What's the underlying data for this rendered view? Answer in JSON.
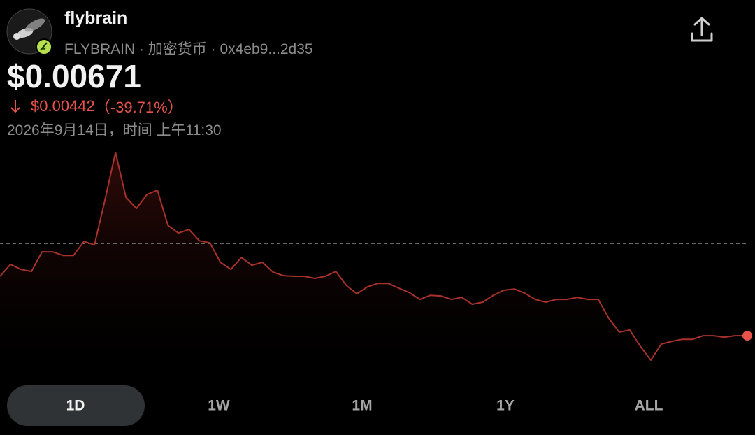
{
  "header": {
    "name": "flybrain",
    "subtitle": "FLYBRAIN · 加密货币 · 0x4eb9...2d35",
    "price": "$0.00671",
    "change": "$0.00442",
    "change_percent": "（-39.71%）",
    "timestamp": "2026年9月14日，时间 上午11:30"
  },
  "chart_data": {
    "type": "line",
    "color": "#a8322b",
    "end_marker_color": "#e5534b",
    "reference_value": 0.01113,
    "ylim": [
      0.00554,
      0.01549
    ],
    "values": [
      0.00956,
      0.01013,
      0.00989,
      0.00979,
      0.01073,
      0.01073,
      0.01056,
      0.01056,
      0.01123,
      0.01106,
      0.01321,
      0.01549,
      0.01334,
      0.01281,
      0.01348,
      0.01368,
      0.012,
      0.01163,
      0.0118,
      0.01126,
      0.01116,
      0.01023,
      0.00989,
      0.01046,
      0.01009,
      0.01023,
      0.00976,
      0.00959,
      0.00956,
      0.00956,
      0.00946,
      0.00956,
      0.00979,
      0.00912,
      0.00872,
      0.00905,
      0.00922,
      0.00922,
      0.00899,
      0.00878,
      0.00845,
      0.00865,
      0.00862,
      0.00845,
      0.00855,
      0.00822,
      0.00832,
      0.00865,
      0.00889,
      0.00895,
      0.00875,
      0.00845,
      0.00832,
      0.00845,
      0.00845,
      0.00855,
      0.00845,
      0.00845,
      0.00755,
      0.00688,
      0.00698,
      0.00621,
      0.00554,
      0.00631,
      0.00644,
      0.00654,
      0.00654,
      0.00671,
      0.00671,
      0.00664,
      0.00671,
      0.00671
    ]
  },
  "tabs": [
    "1D",
    "1W",
    "1M",
    "1Y",
    "ALL"
  ],
  "selected_tab": 0
}
